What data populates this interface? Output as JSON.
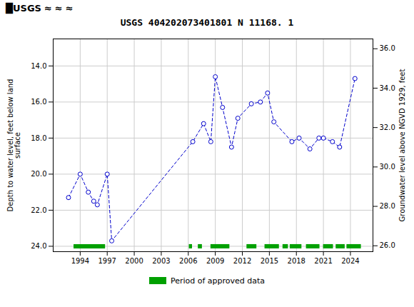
{
  "chart_data": {
    "type": "line",
    "title": "USGS 404202073401801 N 11168. 1",
    "annotations": [
      "█USGS",
      "≈",
      "≈",
      "≈"
    ],
    "y_label": "Depth to water level, feet below land\nsurface",
    "y2_label": "Groundwater level above NGVD 1929, feet",
    "xlim": [
      1991.0,
      2026.5
    ],
    "xticks": [
      1994,
      1997,
      2000,
      2003,
      2006,
      2009,
      2012,
      2015,
      2018,
      2021,
      2024
    ],
    "ylim": [
      24.3,
      12.5
    ],
    "yticks": [
      {
        "value": 14.0,
        "label": "14.0"
      },
      {
        "value": 16.0,
        "label": "16.0"
      },
      {
        "value": 18.0,
        "label": "18.0"
      },
      {
        "value": 20.0,
        "label": "20.0"
      },
      {
        "value": 22.0,
        "label": "22.0"
      },
      {
        "value": 24.0,
        "label": "24.0"
      }
    ],
    "y2lim": [
      25.7,
      36.5
    ],
    "y2ticks": [
      {
        "value": 26.0,
        "label": "26.0"
      },
      {
        "value": 28.0,
        "label": "28.0"
      },
      {
        "value": 30.0,
        "label": "30.0"
      },
      {
        "value": 32.0,
        "label": "32.0"
      },
      {
        "value": 34.0,
        "label": "34.0"
      },
      {
        "value": 36.0,
        "label": "36.0"
      }
    ],
    "grid": true,
    "legend": "bottom",
    "series": [
      {
        "type": "line",
        "color": "#0000cc",
        "marker": "circle_open",
        "line_style": "dashed",
        "x": [
          1992.7,
          1994.0,
          1994.9,
          1995.5,
          1995.9,
          1997.0,
          1997.5,
          2006.5,
          2007.7,
          2008.5,
          2009.0,
          2009.8,
          2010.8,
          2011.5,
          2013.0,
          2014.0,
          2014.8,
          2015.5,
          2017.5,
          2018.3,
          2019.5,
          2020.5,
          2021.0,
          2022.0,
          2022.8,
          2024.5
        ],
        "values": [
          21.3,
          20.0,
          21.0,
          21.5,
          21.7,
          20.0,
          23.7,
          18.2,
          17.2,
          18.2,
          14.6,
          16.3,
          18.5,
          16.9,
          16.1,
          16.0,
          15.5,
          17.1,
          18.2,
          18.0,
          18.6,
          18.0,
          18.0,
          18.2,
          18.5,
          14.7
        ]
      },
      {
        "type": "bar",
        "orientation": "horizontal",
        "name": "Period of approved data",
        "color": "#00a000",
        "y": 24.0,
        "segments": [
          [
            1993.3,
            1996.8
          ],
          [
            2006.1,
            2006.45
          ],
          [
            2007.1,
            2007.55
          ],
          [
            2008.5,
            2010.6
          ],
          [
            2012.5,
            2013.6
          ],
          [
            2014.5,
            2016.1
          ],
          [
            2016.5,
            2017.1
          ],
          [
            2017.3,
            2018.6
          ],
          [
            2019.1,
            2020.6
          ],
          [
            2021.0,
            2022.1
          ],
          [
            2022.4,
            2023.4
          ],
          [
            2023.6,
            2025.2
          ]
        ]
      }
    ]
  }
}
